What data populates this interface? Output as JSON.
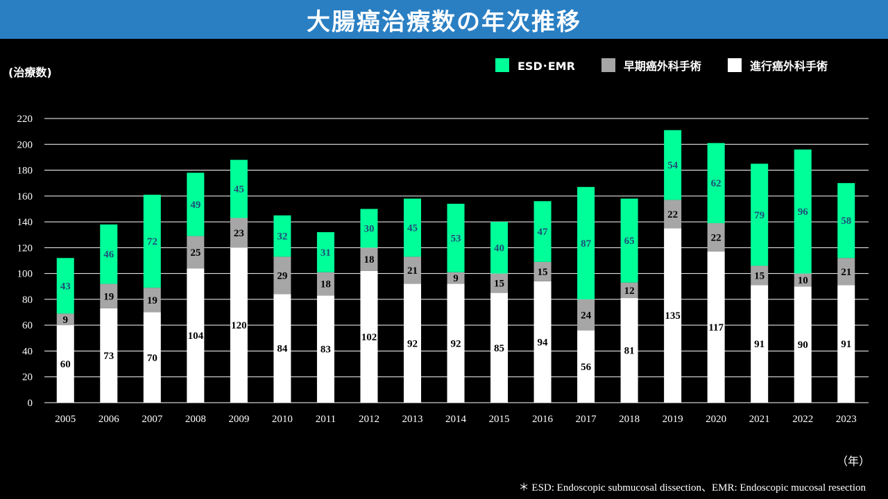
{
  "title": "大腸癌治療数の年次推移",
  "y_unit_label": "(治療数)",
  "x_unit_label": "（年）",
  "footnote": "＊ ESD: Endoscopic submucosal dissection、EMR: Endoscopic mucosal resection",
  "colors": {
    "title_bar": "#2a7fc3",
    "background": "#000000",
    "advanced": "#ffffff",
    "early": "#a6a6a6",
    "esd": "#00ff99",
    "grid": "#ffffff",
    "label_dark": "#000000",
    "label_esd": "#1f4e79"
  },
  "legend": [
    {
      "name": "ESD･EMR",
      "color": "#00ff99",
      "icon": "green-square"
    },
    {
      "name": "早期癌外科手術",
      "color": "#a6a6a6",
      "icon": "gray-square"
    },
    {
      "name": "進行癌外科手術",
      "color": "#ffffff",
      "icon": "white-square"
    }
  ],
  "chart_data": {
    "type": "bar",
    "stacked": true,
    "title": "大腸癌治療数の年次推移",
    "xlabel": "（年）",
    "ylabel": "(治療数)",
    "ylim": [
      0,
      220
    ],
    "yticks": [
      0,
      20,
      40,
      60,
      80,
      100,
      120,
      140,
      160,
      180,
      200,
      220
    ],
    "grid": true,
    "legend_position": "top-right",
    "categories": [
      "2005",
      "2006",
      "2007",
      "2008",
      "2009",
      "2010",
      "2011",
      "2012",
      "2013",
      "2014",
      "2015",
      "2016",
      "2017",
      "2018",
      "2019",
      "2020",
      "2021",
      "2022",
      "2023"
    ],
    "series": [
      {
        "name": "進行癌外科手術",
        "values": [
          60,
          73,
          70,
          104,
          120,
          84,
          83,
          102,
          92,
          92,
          85,
          94,
          56,
          81,
          135,
          117,
          91,
          90,
          91
        ]
      },
      {
        "name": "早期癌外科手術",
        "values": [
          9,
          19,
          19,
          25,
          23,
          29,
          18,
          18,
          21,
          9,
          15,
          15,
          24,
          12,
          22,
          22,
          15,
          10,
          21
        ]
      },
      {
        "name": "ESD･EMR",
        "values": [
          43,
          46,
          72,
          49,
          45,
          32,
          31,
          30,
          45,
          53,
          40,
          47,
          87,
          65,
          54,
          62,
          79,
          96,
          58
        ]
      }
    ]
  }
}
